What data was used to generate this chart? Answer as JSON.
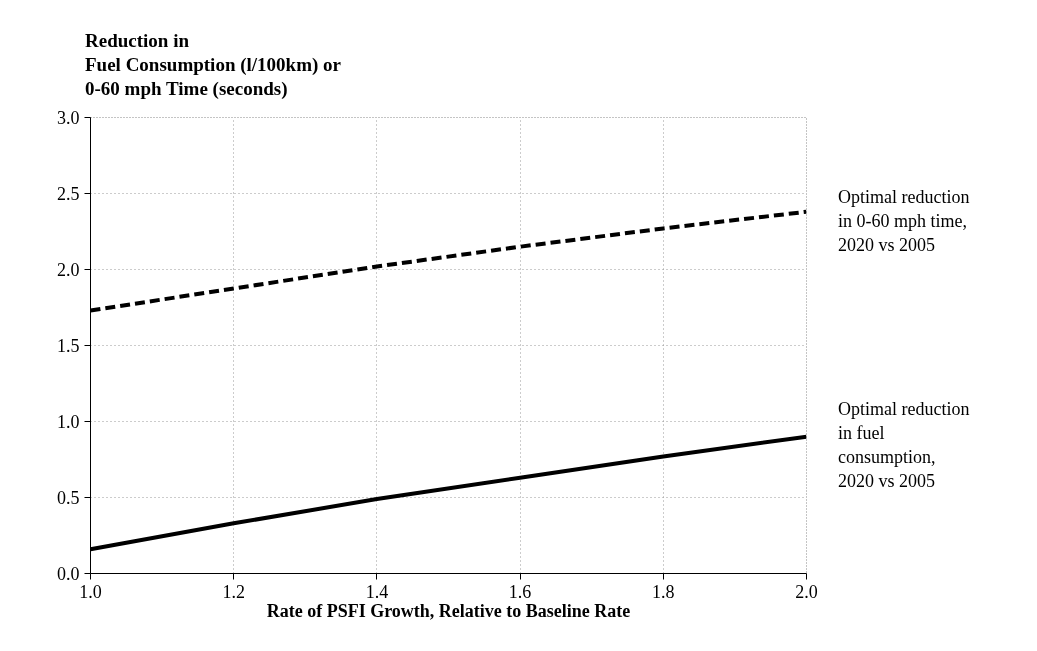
{
  "chart_data": {
    "type": "line",
    "ylabel": "Reduction in\nFuel Consumption (l/100km) or\n0-60 mph Time (seconds)",
    "xlabel": "Rate of PSFI Growth, Relative to Baseline Rate",
    "x": [
      1.0,
      1.2,
      1.4,
      1.6,
      1.8,
      2.0
    ],
    "series": [
      {
        "name": "Optimal reduction\nin 0-60 mph time,\n2020 vs 2005",
        "color": "#000000",
        "line_style": "dashed",
        "values": [
          1.73,
          1.875,
          2.02,
          2.15,
          2.27,
          2.38
        ]
      },
      {
        "name": "Optimal reduction\nin fuel\nconsumption,\n2020 vs 2005",
        "color": "#000000",
        "line_style": "solid",
        "values": [
          0.16,
          0.33,
          0.49,
          0.63,
          0.77,
          0.9
        ]
      }
    ],
    "xlim": [
      1.0,
      2.0
    ],
    "xticks": [
      {
        "value": 1.0,
        "label": "1.0"
      },
      {
        "value": 1.2,
        "label": "1.2"
      },
      {
        "value": 1.4,
        "label": "1.4"
      },
      {
        "value": 1.6,
        "label": "1.6"
      },
      {
        "value": 1.8,
        "label": "1.8"
      },
      {
        "value": 2.0,
        "label": "2.0"
      }
    ],
    "ylim": [
      0.0,
      3.0
    ],
    "yticks": [
      {
        "value": 0.0,
        "label": "0.0"
      },
      {
        "value": 0.5,
        "label": "0.5"
      },
      {
        "value": 1.0,
        "label": "1.0"
      },
      {
        "value": 1.5,
        "label": "1.5"
      },
      {
        "value": 2.0,
        "label": "2.0"
      },
      {
        "value": 2.5,
        "label": "2.5"
      },
      {
        "value": 3.0,
        "label": "3.0"
      }
    ],
    "grid": true,
    "marker": "none"
  }
}
